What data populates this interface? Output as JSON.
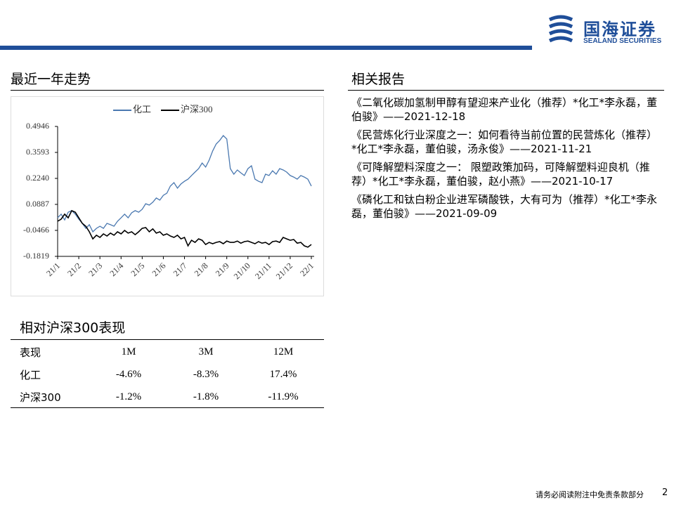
{
  "header": {
    "company": "国海证券",
    "company_en": "SEALAND SECURITIES"
  },
  "trend_section": {
    "title": "最近一年走势"
  },
  "chart_data": {
    "type": "line",
    "x": [
      0,
      1,
      2,
      3,
      4,
      5,
      6,
      7,
      8,
      9,
      10,
      11,
      12,
      13,
      14,
      15,
      16,
      17,
      18,
      19,
      20,
      21,
      22,
      23,
      24,
      25,
      26,
      27,
      28,
      29,
      30,
      31,
      32,
      33,
      34,
      35,
      36,
      37,
      38,
      39,
      40,
      41,
      42,
      43,
      44,
      45,
      46,
      47,
      48,
      49,
      50,
      51,
      52,
      53,
      54,
      55,
      56,
      57,
      58,
      59,
      60,
      61,
      62,
      63,
      64,
      65,
      66,
      67,
      68,
      69,
      70,
      71,
      72
    ],
    "xlim": [
      0,
      72
    ],
    "xticks": [
      {
        "value": 0,
        "label": "21/1"
      },
      {
        "value": 6,
        "label": "21/2"
      },
      {
        "value": 12,
        "label": "21/3"
      },
      {
        "value": 18,
        "label": "21/4"
      },
      {
        "value": 24,
        "label": "21/5"
      },
      {
        "value": 30,
        "label": "21/6"
      },
      {
        "value": 36,
        "label": "21/7"
      },
      {
        "value": 42,
        "label": "21/8"
      },
      {
        "value": 48,
        "label": "21/9"
      },
      {
        "value": 54,
        "label": "21/10"
      },
      {
        "value": 60,
        "label": "21/11"
      },
      {
        "value": 66,
        "label": "21/12"
      },
      {
        "value": 72,
        "label": "22/1"
      }
    ],
    "ylim": [
      -0.1819,
      0.4946
    ],
    "yticks": [
      0.4946,
      0.3593,
      {
        "value": 0.224,
        "label": "0.2240"
      },
      0.0887,
      -0.0466,
      -0.1819
    ],
    "legend": "top",
    "series": [
      {
        "name": "化工",
        "color": "#4a78b0",
        "values": [
          0.019,
          0.038,
          0.008,
          0.048,
          0.056,
          0.038,
          0.012,
          -0.01,
          -0.036,
          -0.017,
          -0.054,
          -0.036,
          -0.025,
          -0.036,
          -0.01,
          -0.017,
          -0.025,
          0.001,
          0.019,
          0.038,
          0.019,
          0.045,
          0.056,
          0.048,
          0.063,
          0.092,
          0.085,
          0.1,
          0.122,
          0.111,
          0.136,
          0.147,
          0.184,
          0.202,
          0.173,
          0.195,
          0.209,
          0.22,
          0.239,
          0.257,
          0.275,
          0.304,
          0.283,
          0.319,
          0.367,
          0.403,
          0.422,
          0.447,
          0.429,
          0.275,
          0.246,
          0.268,
          0.253,
          0.239,
          0.275,
          0.29,
          0.22,
          0.209,
          0.202,
          0.246,
          0.239,
          0.264,
          0.246,
          0.275,
          0.268,
          0.257,
          0.239,
          0.231,
          0.22,
          0.239,
          0.231,
          0.22,
          0.184
        ]
      },
      {
        "name": "沪深300",
        "color": "#000000",
        "values": [
          0.001,
          0.012,
          0.038,
          0.019,
          0.056,
          0.048,
          0.019,
          -0.01,
          -0.025,
          -0.054,
          -0.091,
          -0.072,
          -0.083,
          -0.065,
          -0.076,
          -0.061,
          -0.072,
          -0.054,
          -0.065,
          -0.047,
          -0.061,
          -0.054,
          -0.069,
          -0.054,
          -0.036,
          -0.032,
          -0.054,
          -0.039,
          -0.061,
          -0.054,
          -0.072,
          -0.065,
          -0.076,
          -0.083,
          -0.072,
          -0.091,
          -0.083,
          -0.127,
          -0.098,
          -0.109,
          -0.091,
          -0.098,
          -0.12,
          -0.109,
          -0.116,
          -0.109,
          -0.105,
          -0.116,
          -0.102,
          -0.109,
          -0.109,
          -0.102,
          -0.113,
          -0.105,
          -0.102,
          -0.109,
          -0.116,
          -0.105,
          -0.113,
          -0.109,
          -0.12,
          -0.105,
          -0.102,
          -0.109,
          -0.083,
          -0.091,
          -0.098,
          -0.094,
          -0.113,
          -0.109,
          -0.127,
          -0.134,
          -0.12
        ]
      }
    ]
  },
  "reports_section": {
    "title": "相关报告",
    "items": [
      "《二氧化碳加氢制甲醇有望迎来产业化（推荐）*化工*李永磊，董伯骏》——2021-12-18",
      "《民营炼化行业深度之一：如何看待当前位置的民营炼化（推荐）*化工*李永磊，董伯骏，汤永俊》——2021-11-21",
      "《可降解塑料深度之一： 限塑政策加码，可降解塑料迎良机（推荐）*化工*李永磊，董伯骏，赵小燕》——2021-10-17",
      "《磷化工和钛白粉企业进军磷酸铁，大有可为（推荐）*化工*李永磊，董伯骏》——2021-09-09"
    ]
  },
  "table": {
    "title": "相对沪深300表现",
    "header": [
      "表现",
      "1M",
      "3M",
      "12M"
    ],
    "rows": [
      [
        "化工",
        "-4.6%",
        "-8.3%",
        "17.4%"
      ],
      [
        "沪深300",
        "-1.2%",
        "-1.8%",
        "-11.9%"
      ]
    ]
  },
  "footer": {
    "disclaimer": "请务必阅读附注中免责条款部分",
    "page": "2"
  }
}
